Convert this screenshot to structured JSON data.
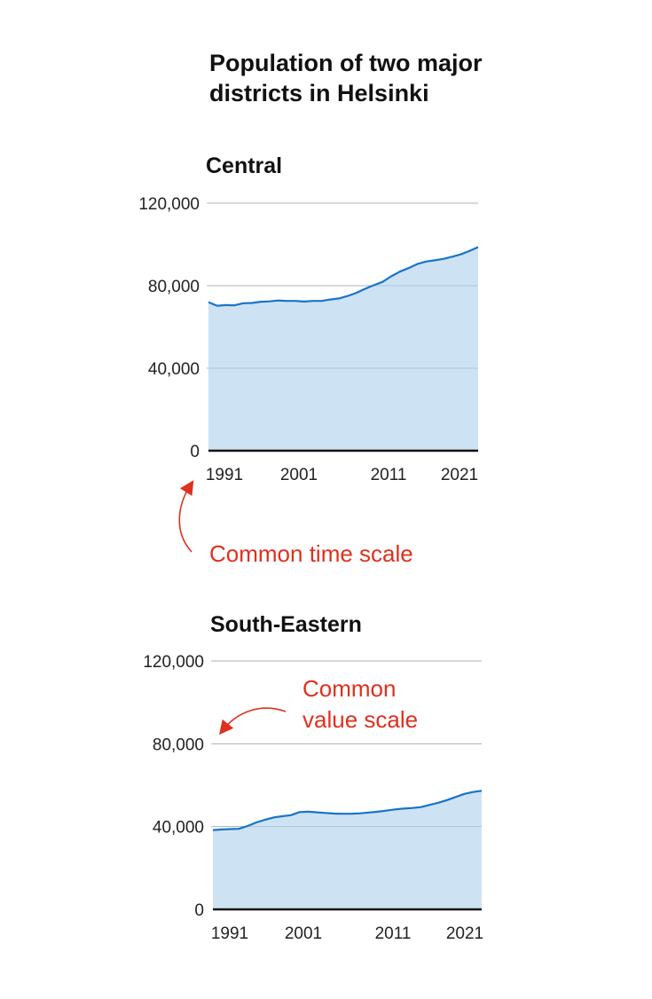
{
  "title": "Population of two major districts in Helsinki",
  "annotations": {
    "time": "Common time scale",
    "value_line1": "Common",
    "value_line2": "value scale"
  },
  "colors": {
    "line": "#1a73c8",
    "fill": "#cde3f3",
    "annotation": "#e0301e",
    "grid": "#bbbbbb"
  },
  "chart_data": [
    {
      "type": "area",
      "title": "Central",
      "x": [
        1991,
        1992,
        1993,
        1994,
        1995,
        1996,
        1997,
        1998,
        1999,
        2000,
        2001,
        2002,
        2003,
        2004,
        2005,
        2006,
        2007,
        2008,
        2009,
        2010,
        2011,
        2012,
        2013,
        2014,
        2015,
        2016,
        2017,
        2018,
        2019,
        2020,
        2021,
        2022
      ],
      "values": [
        72000,
        70300,
        70600,
        70500,
        71500,
        71600,
        72200,
        72400,
        72800,
        72600,
        72600,
        72300,
        72600,
        72600,
        73300,
        73800,
        75000,
        76500,
        78500,
        80200,
        81800,
        84500,
        86800,
        88500,
        90500,
        91700,
        92300,
        93000,
        94000,
        95200,
        96800,
        98700
      ],
      "xticks": [
        "1991",
        "2001",
        "2011",
        "2021"
      ],
      "yticks": [
        "0",
        "40,000",
        "80,000",
        "120,000"
      ],
      "ylim": [
        0,
        120000
      ],
      "grid": true
    },
    {
      "type": "area",
      "title": "South-Eastern",
      "x": [
        1991,
        1992,
        1993,
        1994,
        1995,
        1996,
        1997,
        1998,
        1999,
        2000,
        2001,
        2002,
        2003,
        2004,
        2005,
        2006,
        2007,
        2008,
        2009,
        2010,
        2011,
        2012,
        2013,
        2014,
        2015,
        2016,
        2017,
        2018,
        2019,
        2020,
        2021,
        2022
      ],
      "values": [
        38300,
        38600,
        38800,
        38900,
        40300,
        42000,
        43300,
        44400,
        45000,
        45500,
        47000,
        47200,
        46900,
        46600,
        46300,
        46200,
        46200,
        46400,
        46800,
        47200,
        47700,
        48300,
        48700,
        49000,
        49400,
        50500,
        51500,
        52800,
        54300,
        55800,
        56700,
        57300
      ],
      "xticks": [
        "1991",
        "2001",
        "2011",
        "2021"
      ],
      "yticks": [
        "0",
        "40,000",
        "80,000",
        "120,000"
      ],
      "ylim": [
        0,
        120000
      ],
      "grid": true
    }
  ]
}
